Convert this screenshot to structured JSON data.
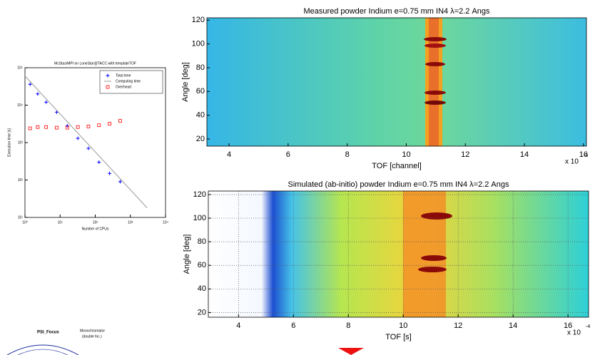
{
  "chart_data": [
    {
      "type": "scatter",
      "title": "McStas/MPI on LoneStar@TACC with templateTOF",
      "x_label": "Number of CPUs",
      "y_label": "Execution time [s]",
      "xscale": "log",
      "yscale": "log",
      "xlim": [
        1,
        10000
      ],
      "ylim": [
        10,
        100000
      ],
      "xticks": [
        {
          "value": 1,
          "label": "10⁰"
        },
        {
          "value": 10,
          "label": "10¹"
        },
        {
          "value": 100,
          "label": "10²"
        },
        {
          "value": 1000,
          "label": "10³"
        },
        {
          "value": 10000,
          "label": "10⁴"
        }
      ],
      "yticks": [
        {
          "value": 10,
          "label": "10¹"
        },
        {
          "value": 100,
          "label": "10²"
        },
        {
          "value": 1000,
          "label": "10³"
        },
        {
          "value": 10000,
          "label": "10⁴"
        },
        {
          "value": 100000,
          "label": "10⁵"
        }
      ],
      "legend": "upper right",
      "series": [
        {
          "name": "Total time",
          "color": "#0000ff",
          "marker": "+",
          "x": [
            1.4,
            2.3,
            4,
            8,
            16,
            32,
            64,
            128,
            256,
            512
          ],
          "values": [
            36000,
            20000,
            12000,
            6500,
            2800,
            1300,
            700,
            300,
            150,
            90
          ]
        },
        {
          "name": "Computing time",
          "color": "#999999",
          "marker": "line",
          "x": [
            1,
            3000
          ],
          "values": [
            60000,
            18
          ]
        },
        {
          "name": "Overhead",
          "color": "#ff0000",
          "marker": "square",
          "x": [
            1.4,
            2.3,
            4,
            8,
            16,
            32,
            64,
            128,
            256,
            512
          ],
          "values": [
            2400,
            2600,
            2600,
            2500,
            2500,
            2600,
            2700,
            2900,
            3200,
            3800
          ]
        }
      ]
    },
    {
      "type": "image",
      "title": "Measured powder Indium e=0.75 mm IN4 λ=2.2 Angs",
      "x_label": "TOF [channel]",
      "y_label": "Angle [deg]",
      "multiplier": "x 10",
      "multiplier_exponent": "-4",
      "xlim": [
        3.25,
        16.1
      ],
      "ylim": [
        14,
        122
      ],
      "xticks": [
        4,
        6,
        8,
        10,
        12,
        14,
        16
      ],
      "yticks": [
        20,
        40,
        60,
        80,
        100,
        120
      ]
    },
    {
      "type": "image",
      "title": "Simulated (ab-initio) powder Indium e=0.75 mm IN4 λ=2.2 Angs",
      "x_label": "TOF [s]",
      "y_label": "Angle [deg]",
      "multiplier": "x 10",
      "multiplier_exponent": "-4",
      "xlim": [
        2.9,
        16.75
      ],
      "ylim": [
        16,
        123
      ],
      "xticks": [
        4,
        6,
        8,
        10,
        12,
        14,
        16
      ],
      "yticks": [
        20,
        40,
        60,
        80,
        100,
        120
      ],
      "grid": true
    }
  ],
  "diagram": {
    "title": "PSI_Focus",
    "labels": [
      "Monochromator",
      "(double foc.)"
    ]
  }
}
